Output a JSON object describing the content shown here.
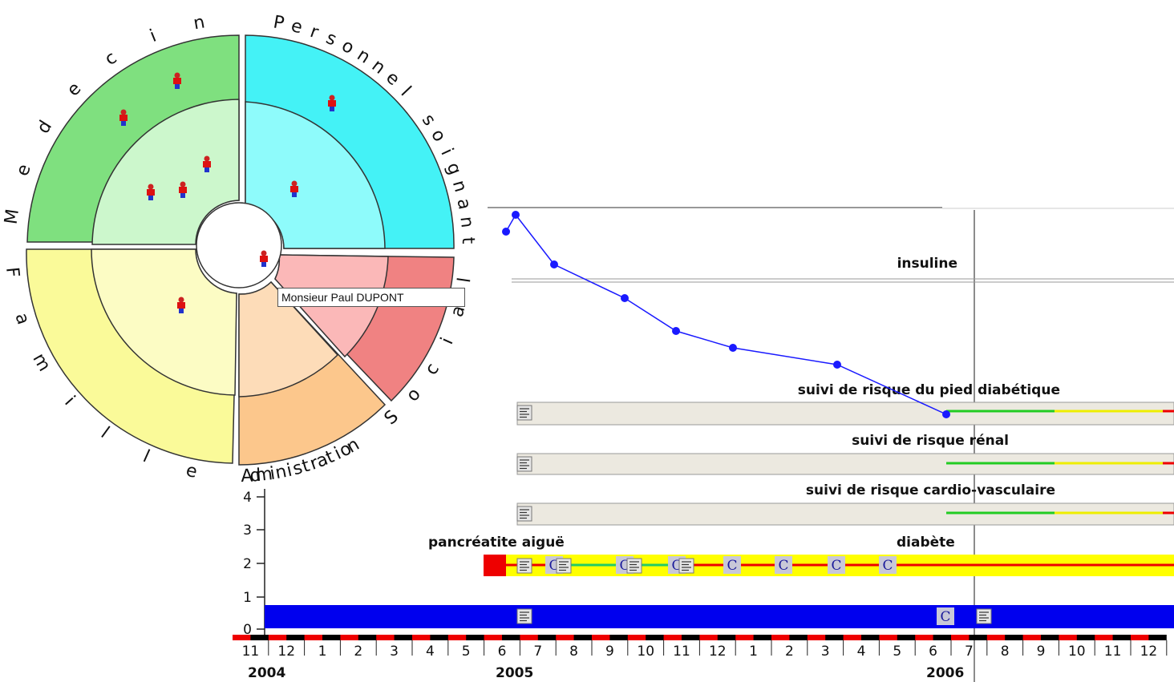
{
  "circle_labels": {
    "medecin": "Medecin",
    "personnel": "Personnel soignant",
    "famille": "Famille",
    "administration": "Administration",
    "social": "Social"
  },
  "tooltip": "Monsieur Paul DUPONT",
  "rows": {
    "insuline": "insuline",
    "pied": "suivi de risque du pied diabétique",
    "renal": "suivi de risque rénal",
    "cardio": "suivi de risque cardio-vasculaire",
    "pancreatite": "pancréatite aiguë",
    "diabete": "diabète"
  },
  "y_ticks": [
    "4",
    "3",
    "2",
    "1",
    "0"
  ],
  "months": [
    "11",
    "12",
    "1",
    "2",
    "3",
    "4",
    "5",
    "6",
    "7",
    "8",
    "9",
    "10",
    "11",
    "12",
    "1",
    "2",
    "3",
    "4",
    "5",
    "6",
    "7",
    "8",
    "9",
    "10",
    "11",
    "12"
  ],
  "years": [
    "2004",
    "2005",
    "2006"
  ],
  "icons": {
    "doc": "document-icon",
    "c": "consultation-icon",
    "person": "person-icon"
  },
  "c_letter": "C",
  "colors": {
    "medecin_outer": "#7fe07f",
    "medecin_inner": "#ccf7cc",
    "personnel_outer": "#44f2f6",
    "personnel_inner": "#8efbfb",
    "famille_outer": "#fafa99",
    "famille_inner": "#fcfcc4",
    "admin_outer": "#fcc78c",
    "admin_inner": "#fddcb8",
    "social_outer": "#f08282",
    "social_inner": "#fbb8b8",
    "curve": "#1a1aff",
    "blue_bar": "#0000ee",
    "yellow_bar": "#ffff00",
    "red": "#ee0000"
  }
}
